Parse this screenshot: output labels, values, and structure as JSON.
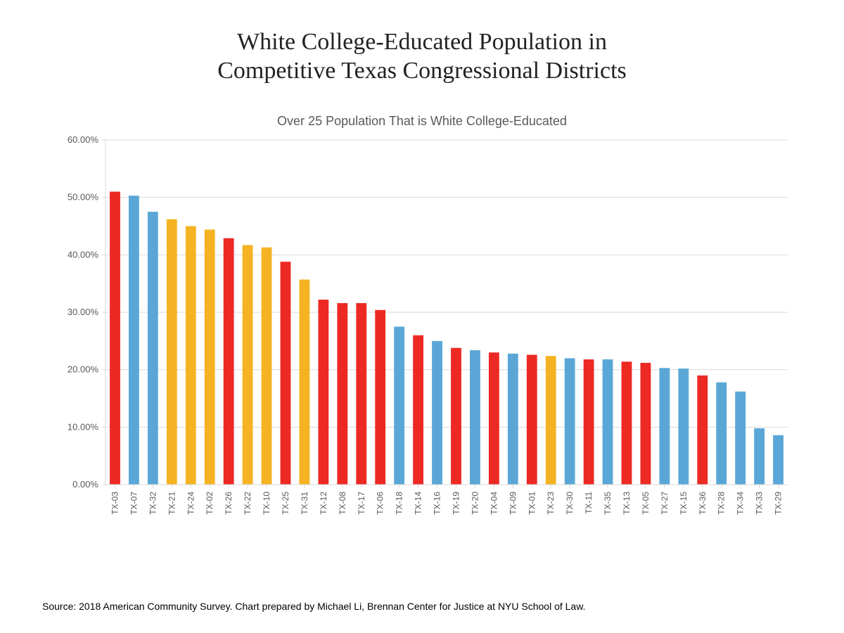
{
  "title_line1": "White College-Educated Population in",
  "title_line2": "Competitive Texas Congressional Districts",
  "title_fontsize": 34,
  "title_color": "#222222",
  "subtitle": "Over 25 Population That is White College-Educated",
  "subtitle_fontsize": 18,
  "subtitle_color": "#595959",
  "source": "Source: 2018 American Community Survey. Chart prepared by Michael Li, Brennan Center for Justice at NYU School of Law.",
  "source_fontsize": 14,
  "chart": {
    "type": "bar",
    "background_color": "#ffffff",
    "grid_color": "#d9d9d9",
    "axis_color": "#d9d9d9",
    "tick_label_color": "#595959",
    "tick_label_fontsize": 13,
    "xlabel_fontsize": 12,
    "xlabel_color": "#595959",
    "ylim": [
      0,
      60
    ],
    "ytick_step": 10,
    "ytick_format": "0.00%",
    "bar_width_ratio": 0.55,
    "colors": {
      "red": "#ed2924",
      "blue": "#5aa7d7",
      "gold": "#f5b323"
    },
    "categories": [
      "TX-03",
      "TX-07",
      "TX-32",
      "TX-21",
      "TX-24",
      "TX-02",
      "TX-26",
      "TX-22",
      "TX-10",
      "TX-25",
      "TX-31",
      "TX-12",
      "TX-08",
      "TX-17",
      "TX-06",
      "TX-18",
      "TX-14",
      "TX-16",
      "TX-19",
      "TX-20",
      "TX-04",
      "TX-09",
      "TX-01",
      "TX-23",
      "TX-30",
      "TX-11",
      "TX-35",
      "TX-13",
      "TX-05",
      "TX-27",
      "TX-15",
      "TX-36",
      "TX-28",
      "TX-34",
      "TX-33",
      "TX-29"
    ],
    "values": [
      51.0,
      50.3,
      47.5,
      46.2,
      45.0,
      44.4,
      42.9,
      41.7,
      41.3,
      38.8,
      35.7,
      32.2,
      31.6,
      31.6,
      30.4,
      27.5,
      26.0,
      25.0,
      23.8,
      23.4,
      23.0,
      22.8,
      22.6,
      22.4,
      22.0,
      21.8,
      21.8,
      21.4,
      21.2,
      20.3,
      20.2,
      19.0,
      17.8,
      16.2,
      9.8,
      8.6
    ],
    "bar_color_keys": [
      "red",
      "blue",
      "blue",
      "gold",
      "gold",
      "gold",
      "red",
      "gold",
      "gold",
      "red",
      "gold",
      "red",
      "red",
      "red",
      "red",
      "blue",
      "red",
      "blue",
      "red",
      "blue",
      "red",
      "blue",
      "red",
      "gold",
      "blue",
      "red",
      "blue",
      "red",
      "red",
      "blue",
      "blue",
      "red",
      "blue",
      "blue",
      "blue",
      "blue"
    ]
  }
}
